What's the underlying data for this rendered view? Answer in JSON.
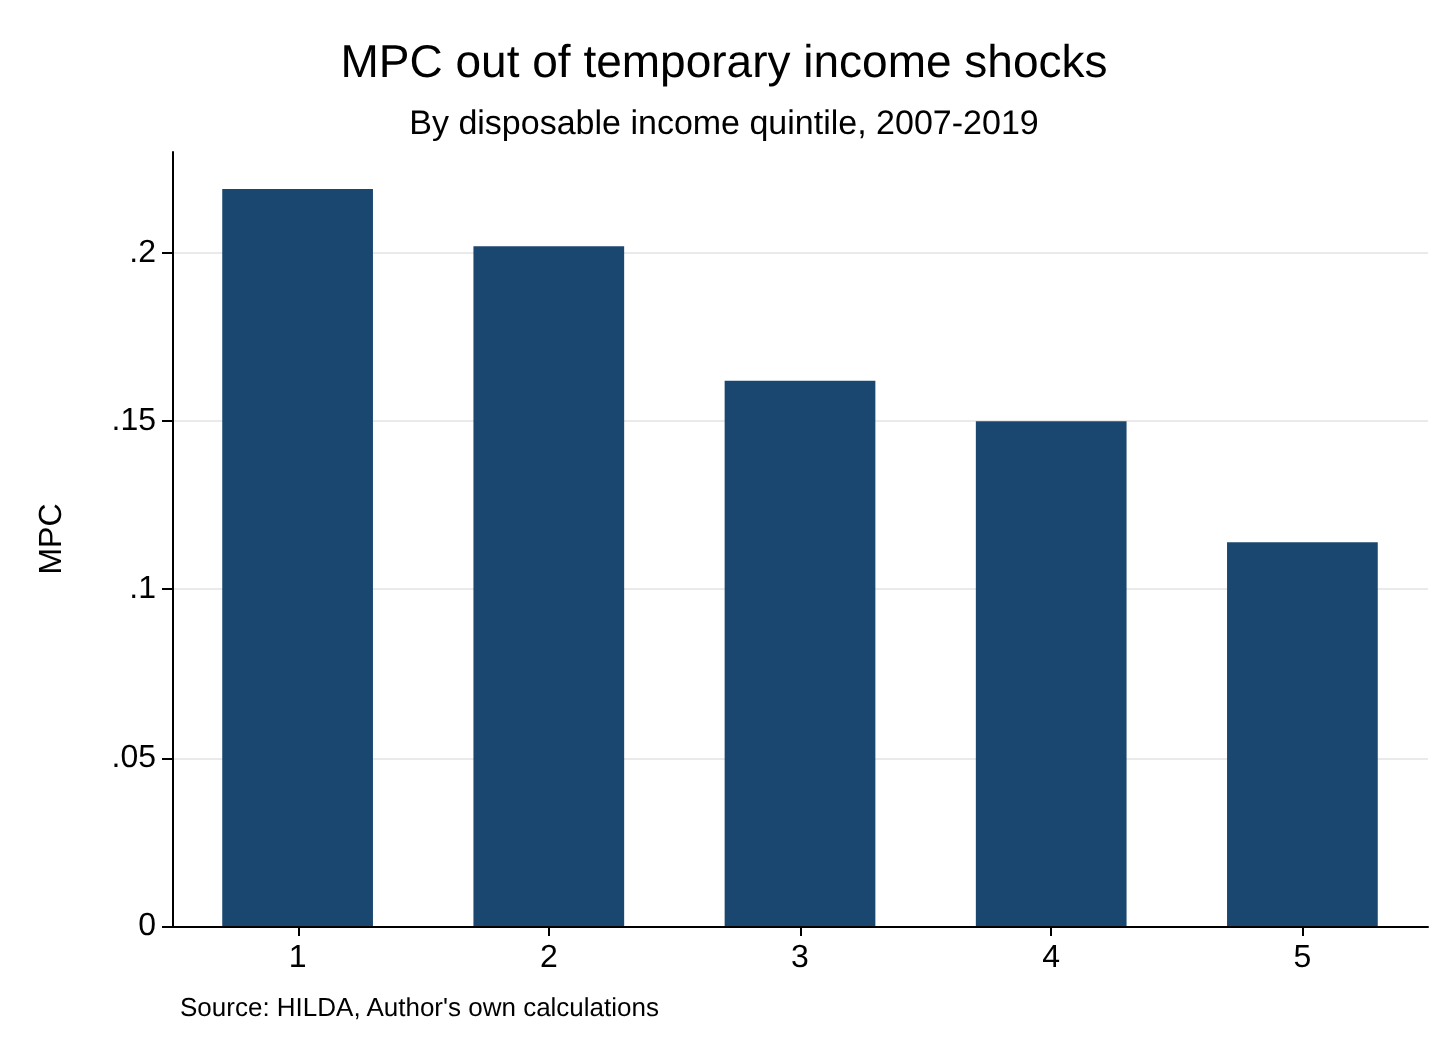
{
  "chart_data": {
    "type": "bar",
    "title": "MPC out of temporary income shocks",
    "subtitle": "By disposable income quintile, 2007-2019",
    "ylabel": "MPC",
    "categories": [
      "1",
      "2",
      "3",
      "4",
      "5"
    ],
    "values": [
      0.219,
      0.202,
      0.162,
      0.15,
      0.114
    ],
    "color": "#1a476f",
    "ylim": [
      0,
      0.23
    ],
    "yticks": [
      0,
      {
        "value": 0.05,
        "label": ".05"
      },
      {
        "value": 0.1,
        "label": ".1"
      },
      {
        "value": 0.15,
        "label": ".15"
      },
      {
        "value": 0.2,
        "label": ".2"
      }
    ],
    "grid": "y",
    "annotations": [
      "Source: HILDA, Author's own calculations"
    ]
  }
}
